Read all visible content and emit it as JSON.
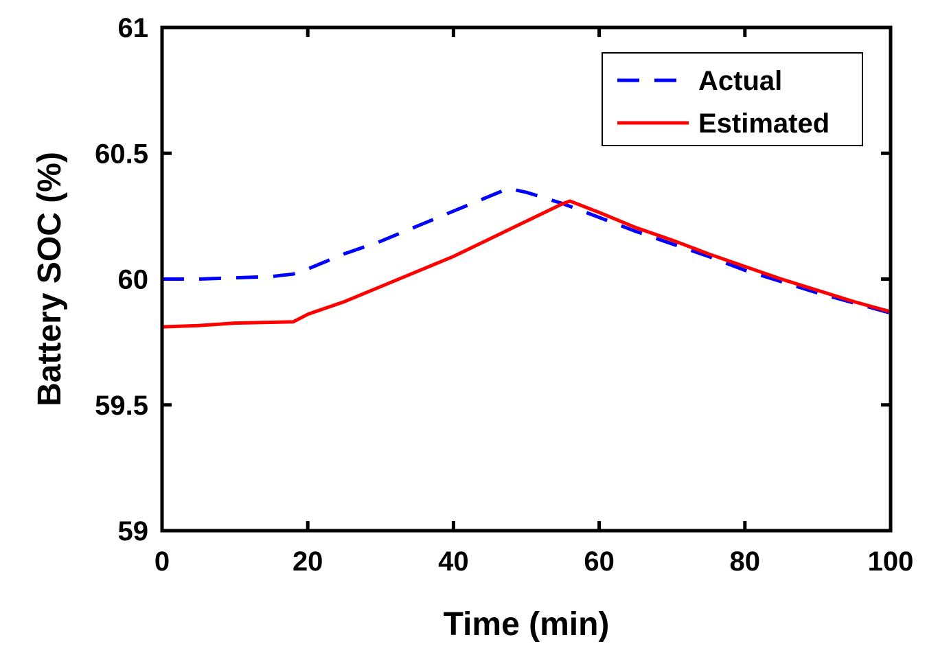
{
  "chart_data": {
    "type": "line",
    "title": "",
    "xlabel": "Time (min)",
    "ylabel": "Battery SOC (%)",
    "xlim": [
      0,
      100
    ],
    "ylim": [
      59,
      61
    ],
    "xticks": [
      0,
      20,
      40,
      60,
      80,
      100
    ],
    "yticks": [
      59,
      59.5,
      60,
      60.5,
      61
    ],
    "xtick_labels": [
      "0",
      "20",
      "40",
      "60",
      "80",
      "100"
    ],
    "ytick_labels": [
      "59",
      "59.5",
      "60",
      "60.5",
      "61"
    ],
    "grid": false,
    "legend_position": "top-right",
    "series": [
      {
        "name": "Actual",
        "color": "#0000ff",
        "style": "dashed",
        "x": [
          0,
          5,
          10,
          15,
          18,
          20,
          25,
          30,
          35,
          40,
          45,
          47.5,
          50,
          55,
          60,
          65,
          70,
          75,
          80,
          85,
          90,
          95,
          100
        ],
        "y": [
          60.0,
          60.0,
          60.005,
          60.01,
          60.02,
          60.04,
          60.1,
          60.15,
          60.21,
          60.27,
          60.33,
          60.36,
          60.345,
          60.3,
          60.245,
          60.19,
          60.14,
          60.09,
          60.035,
          59.99,
          59.945,
          59.905,
          59.865
        ]
      },
      {
        "name": "Estimated",
        "color": "#ff0000",
        "style": "solid",
        "x": [
          0,
          5,
          10,
          15,
          18,
          20,
          25,
          30,
          35,
          40,
          45,
          50,
          55,
          56,
          60,
          65,
          70,
          75,
          80,
          85,
          90,
          95,
          100
        ],
        "y": [
          59.81,
          59.815,
          59.825,
          59.828,
          59.83,
          59.86,
          59.91,
          59.97,
          60.03,
          60.09,
          60.16,
          60.23,
          60.3,
          60.31,
          60.265,
          60.205,
          60.155,
          60.1,
          60.05,
          60.0,
          59.955,
          59.91,
          59.87
        ]
      }
    ]
  }
}
